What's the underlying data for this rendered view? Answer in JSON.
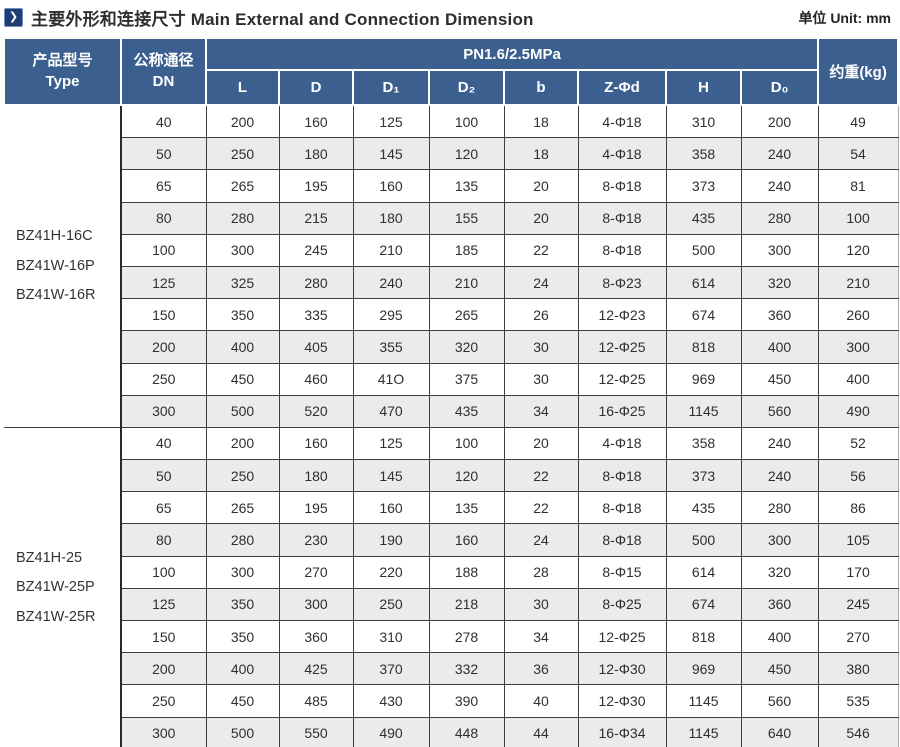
{
  "title": {
    "heading": "主要外形和连接尺寸 Main External and Connection Dimension",
    "unit": "单位 Unit: mm"
  },
  "table": {
    "header": {
      "type_zh": "产品型号",
      "type_en": "Type",
      "dn_zh": "公称通径",
      "dn_en": "DN",
      "pn_group": "PN1.6/2.5MPa",
      "dims": [
        "L",
        "D",
        "D₁",
        "D₂",
        "b",
        "Z-Φd",
        "H",
        "D₀"
      ],
      "weight": "约重(kg)"
    },
    "groups": [
      {
        "type_lines": [
          "BZ41H-16C",
          "BZ41W-16P",
          "BZ41W-16R"
        ],
        "rows": [
          [
            "40",
            "200",
            "160",
            "125",
            "100",
            "18",
            "4-Φ18",
            "310",
            "200",
            "49"
          ],
          [
            "50",
            "250",
            "180",
            "145",
            "120",
            "18",
            "4-Φ18",
            "358",
            "240",
            "54"
          ],
          [
            "65",
            "265",
            "195",
            "160",
            "135",
            "20",
            "8-Φ18",
            "373",
            "240",
            "81"
          ],
          [
            "80",
            "280",
            "215",
            "180",
            "155",
            "20",
            "8-Φ18",
            "435",
            "280",
            "100"
          ],
          [
            "100",
            "300",
            "245",
            "210",
            "185",
            "22",
            "8-Φ18",
            "500",
            "300",
            "120"
          ],
          [
            "125",
            "325",
            "280",
            "240",
            "210",
            "24",
            "8-Φ23",
            "614",
            "320",
            "210"
          ],
          [
            "150",
            "350",
            "335",
            "295",
            "265",
            "26",
            "12-Φ23",
            "674",
            "360",
            "260"
          ],
          [
            "200",
            "400",
            "405",
            "355",
            "320",
            "30",
            "12-Φ25",
            "818",
            "400",
            "300"
          ],
          [
            "250",
            "450",
            "460",
            "41O",
            "375",
            "30",
            "12-Φ25",
            "969",
            "450",
            "400"
          ],
          [
            "300",
            "500",
            "520",
            "470",
            "435",
            "34",
            "16-Φ25",
            "1145",
            "560",
            "490"
          ]
        ]
      },
      {
        "type_lines": [
          "BZ41H-25",
          "BZ41W-25P",
          "BZ41W-25R"
        ],
        "rows": [
          [
            "40",
            "200",
            "160",
            "125",
            "100",
            "20",
            "4-Φ18",
            "358",
            "240",
            "52"
          ],
          [
            "50",
            "250",
            "180",
            "145",
            "120",
            "22",
            "8-Φ18",
            "373",
            "240",
            "56"
          ],
          [
            "65",
            "265",
            "195",
            "160",
            "135",
            "22",
            "8-Φ18",
            "435",
            "280",
            "86"
          ],
          [
            "80",
            "280",
            "230",
            "190",
            "160",
            "24",
            "8-Φ18",
            "500",
            "300",
            "105"
          ],
          [
            "100",
            "300",
            "270",
            "220",
            "188",
            "28",
            "8-Φ15",
            "614",
            "320",
            "170"
          ],
          [
            "125",
            "350",
            "300",
            "250",
            "218",
            "30",
            "8-Φ25",
            "674",
            "360",
            "245"
          ],
          [
            "150",
            "350",
            "360",
            "310",
            "278",
            "34",
            "12-Φ25",
            "818",
            "400",
            "270"
          ],
          [
            "200",
            "400",
            "425",
            "370",
            "332",
            "36",
            "12-Φ30",
            "969",
            "450",
            "380"
          ],
          [
            "250",
            "450",
            "485",
            "430",
            "390",
            "40",
            "12-Φ30",
            "1145",
            "560",
            "535"
          ],
          [
            "300",
            "500",
            "550",
            "490",
            "448",
            "44",
            "16-Φ34",
            "1145",
            "640",
            "546"
          ]
        ]
      }
    ]
  },
  "icons": {
    "title_icon": "chevron-right-icon",
    "title_icon_glyph": "❯"
  },
  "colors": {
    "header_bg": "#3b608f",
    "stripe_bg": "#e9ebec",
    "grid_line": "#3f3f3f",
    "icon_bg": "#1d3e74",
    "bottom_rule": "#111111"
  }
}
